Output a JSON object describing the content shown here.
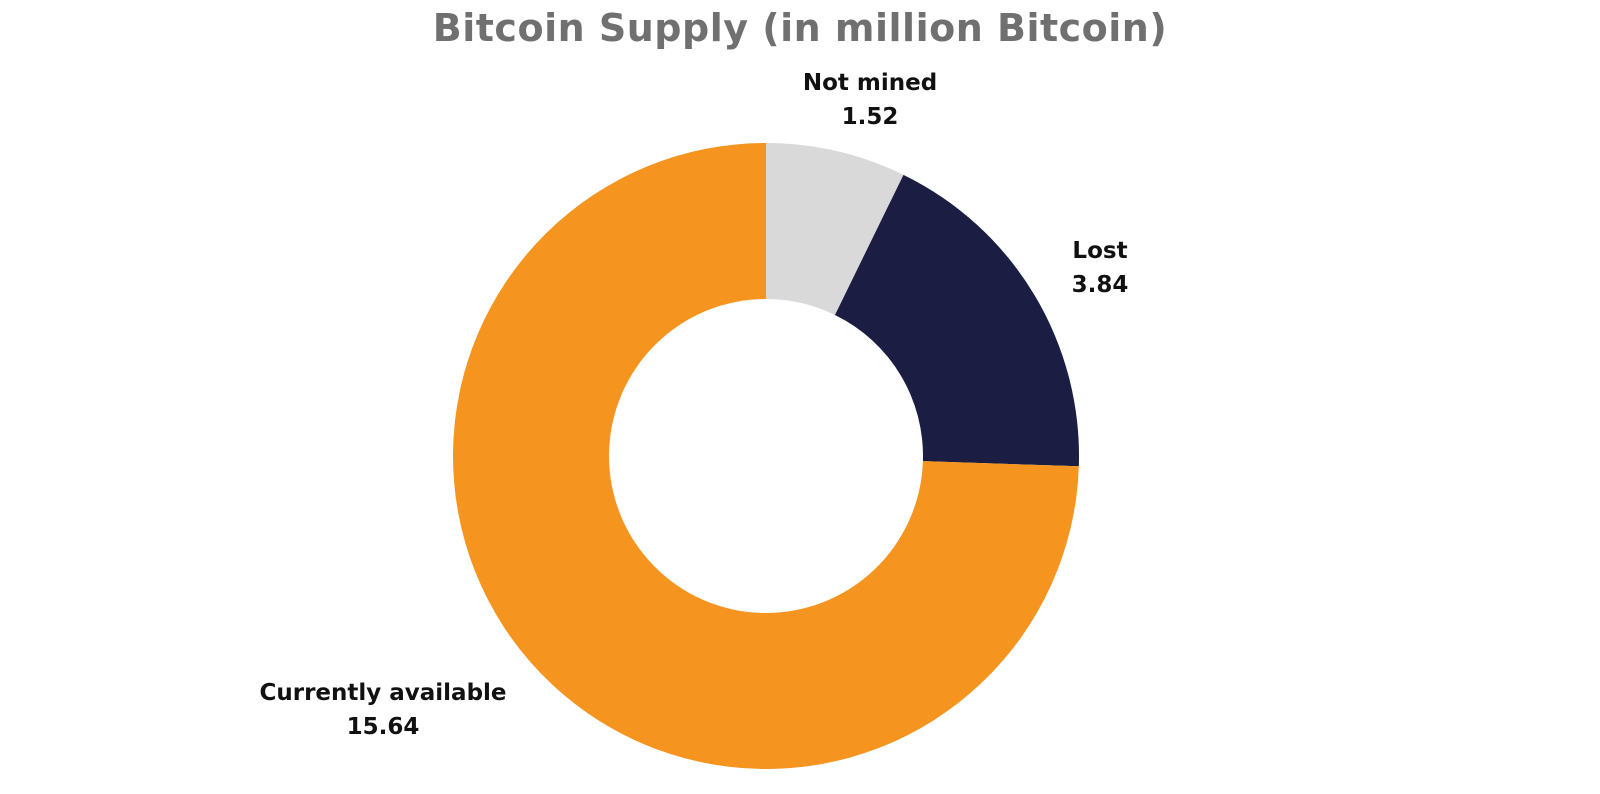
{
  "chart_data": {
    "type": "pie",
    "donut": true,
    "title": "Bitcoin Supply (in million Bitcoin)",
    "slices": [
      {
        "label": "Not mined",
        "value": 1.52,
        "color": "#d9d9d9"
      },
      {
        "label": "Lost",
        "value": 3.84,
        "color": "#1b1d42"
      },
      {
        "label": "Currently available",
        "value": 15.64,
        "color": "#f5941e"
      }
    ],
    "value_labels": [
      "1.52",
      "3.84",
      "15.64"
    ],
    "legend": "none"
  }
}
